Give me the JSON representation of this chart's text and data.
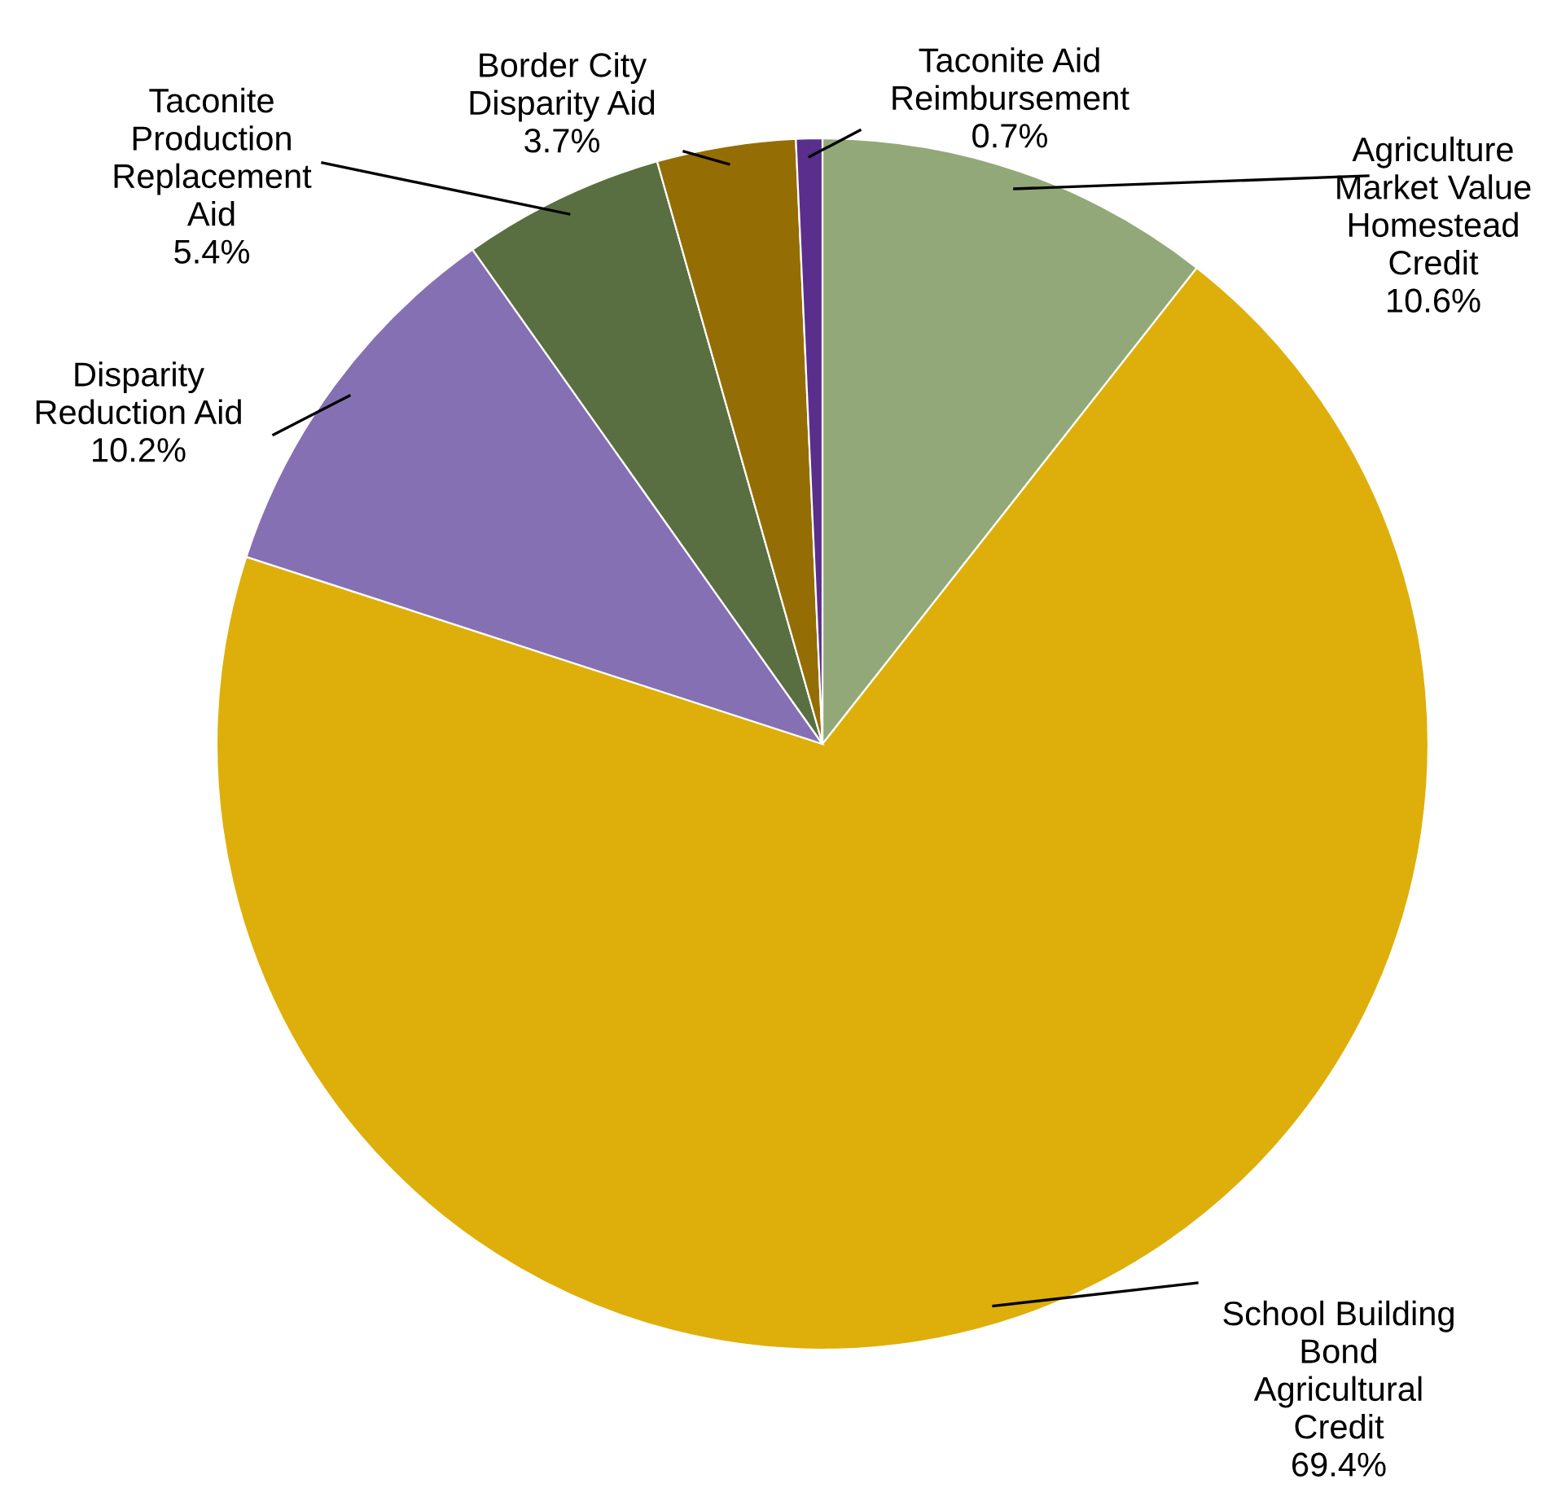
{
  "chart_data": {
    "type": "pie",
    "categories": [
      "Agriculture\nMarket Value\nHomestead\nCredit",
      "School Building\nBond\nAgricultural\nCredit",
      "Disparity\nReduction Aid",
      "Taconite\nProduction\nReplacement\nAid",
      "Border City\nDisparity Aid",
      "Taconite Aid\nReimbursement"
    ],
    "values": [
      10.6,
      69.4,
      10.2,
      5.4,
      3.7,
      0.7
    ],
    "value_labels": [
      "10.6%",
      "69.4%",
      "10.2%",
      "5.4%",
      "3.7%",
      "0.7%"
    ],
    "colors": [
      "#93a878",
      "#deaf0a",
      "#8670b4",
      "#5a6f41",
      "#946e04",
      "#5a2e8c"
    ]
  }
}
